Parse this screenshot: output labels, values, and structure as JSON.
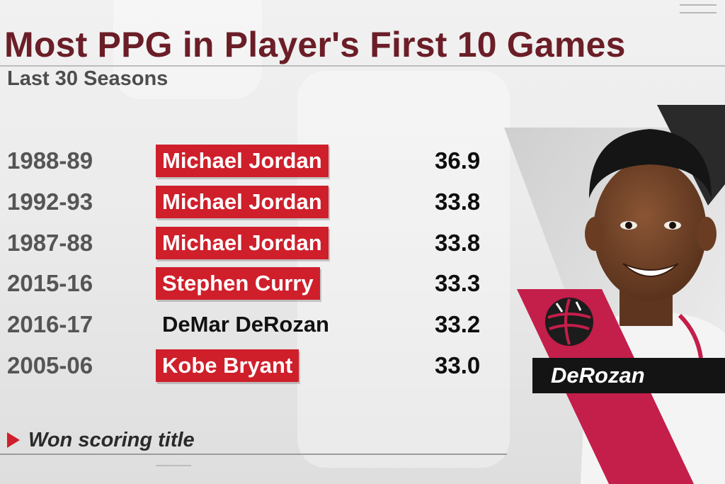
{
  "header": {
    "title": "Most PPG in Player's First 10 Games",
    "subtitle": "Last 30 Seasons"
  },
  "rows": [
    {
      "season": "1988-89",
      "player": "Michael Jordan",
      "ppg": "36.9",
      "scoring_title": true
    },
    {
      "season": "1992-93",
      "player": "Michael Jordan",
      "ppg": "33.8",
      "scoring_title": true
    },
    {
      "season": "1987-88",
      "player": "Michael Jordan",
      "ppg": "33.8",
      "scoring_title": true
    },
    {
      "season": "2015-16",
      "player": "Stephen Curry",
      "ppg": "33.3",
      "scoring_title": true
    },
    {
      "season": "2016-17",
      "player": "DeMar DeRozan",
      "ppg": "33.2",
      "scoring_title": false
    },
    {
      "season": "2005-06",
      "player": "Kobe Bryant",
      "ppg": "33.0",
      "scoring_title": true
    }
  ],
  "legend": {
    "label": "Won scoring title",
    "marker_icon": "red-triangle-icon"
  },
  "photo": {
    "name_label": "DeRozan",
    "team_logo_icon": "raptors-basketball-logo-icon"
  },
  "colors": {
    "title": "#6b1e27",
    "highlight": "#cf1f2b",
    "team_red": "#c41e4a",
    "name_bar": "#141414"
  }
}
